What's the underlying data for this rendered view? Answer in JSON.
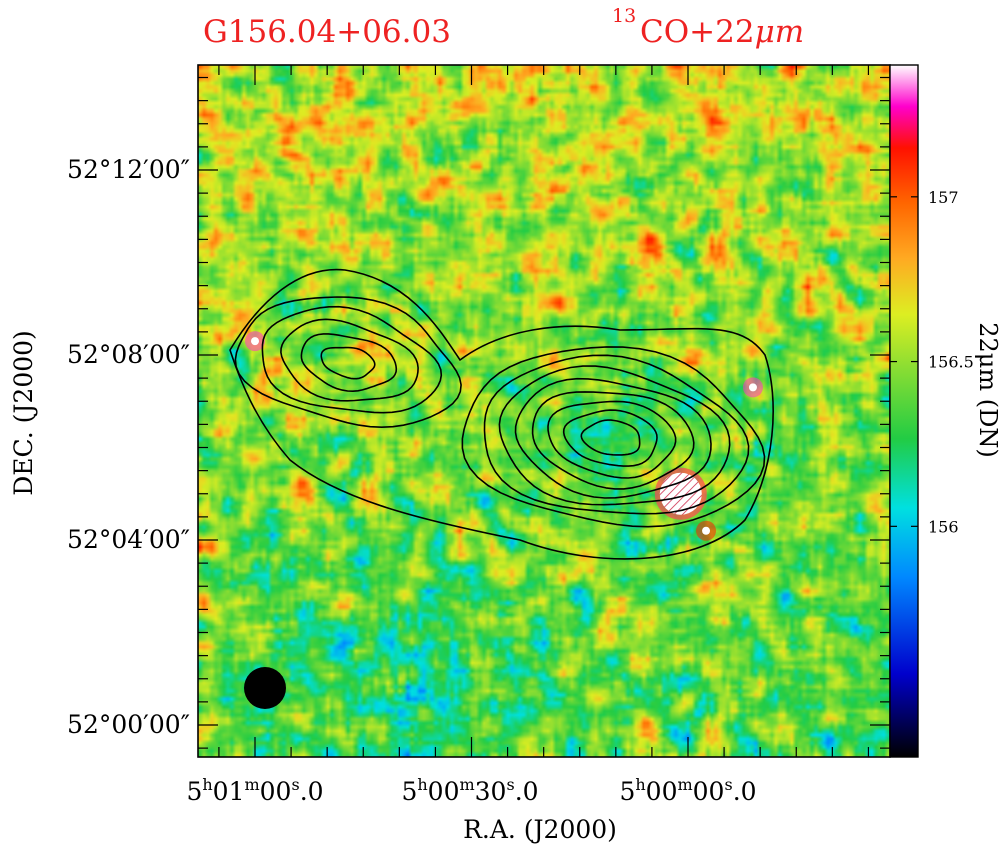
{
  "chart_data": {
    "type": "heatmap",
    "title_left": "G156.04+06.03",
    "title_right_sup": "13",
    "title_right_main": "CO+22",
    "title_right_unit": "μm",
    "xlabel": "R.A.  (J2000)",
    "ylabel": "DEC.  (J2000)",
    "x_ticks": [
      {
        "h": "5",
        "m": "01",
        "s": "00",
        "frac": "0"
      },
      {
        "h": "5",
        "m": "00",
        "s": "30",
        "frac": "0"
      },
      {
        "h": "5",
        "m": "00",
        "s": "00",
        "frac": "0"
      }
    ],
    "y_ticks": [
      "52°12′00″",
      "52°08′00″",
      "52°04′00″",
      "52°00′00″"
    ],
    "y_tick_values_arcmin": [
      12,
      8,
      4,
      0
    ],
    "colorbar": {
      "label": "22μm  (DN)",
      "min": 155.3,
      "max": 157.4,
      "ticks": [
        157,
        156.5,
        156
      ]
    },
    "colormap": [
      {
        "v": 0.0,
        "c": "#000000"
      },
      {
        "v": 0.12,
        "c": "#0000cc"
      },
      {
        "v": 0.26,
        "c": "#0088ff"
      },
      {
        "v": 0.36,
        "c": "#00e0e0"
      },
      {
        "v": 0.46,
        "c": "#22cc44"
      },
      {
        "v": 0.56,
        "c": "#88dd33"
      },
      {
        "v": 0.64,
        "c": "#ddee22"
      },
      {
        "v": 0.72,
        "c": "#ffaa22"
      },
      {
        "v": 0.8,
        "c": "#ff6600"
      },
      {
        "v": 0.88,
        "c": "#ff1100"
      },
      {
        "v": 0.94,
        "c": "#ff00cc"
      },
      {
        "v": 1.0,
        "c": "#ffffff"
      }
    ],
    "contour_levels": 8,
    "beam": "filled-circle",
    "point_sources": [
      {
        "ra_s": 60.0,
        "dec_arcmin": 8.3,
        "color": "#ff33cc"
      },
      {
        "ra_s": -9.0,
        "dec_arcmin": 7.3,
        "color": "#ff33cc"
      },
      {
        "ra_s": 1.0,
        "dec_arcmin": 5.0,
        "color": "#ffffff",
        "hatched": true
      },
      {
        "ra_s": -2.5,
        "dec_arcmin": 4.2,
        "color": "#ff2200"
      }
    ]
  }
}
